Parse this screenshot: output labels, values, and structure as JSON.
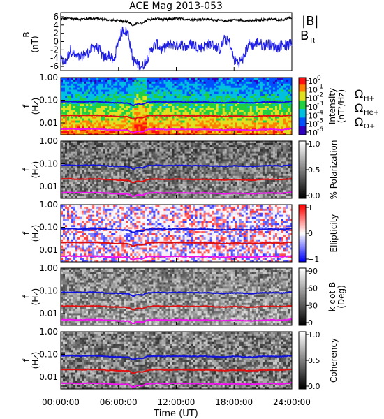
{
  "title": "ACE Mag 2013-053",
  "time_ticks": [
    "00:00:00",
    "06:00:00",
    "12:00:00",
    "18:00:00",
    "24:00:00"
  ],
  "xlabel": "Time (UT)",
  "colors": {
    "B": "#000000",
    "BR": "#1e1ee6",
    "H": "#1212dd",
    "He": "#e01010",
    "O": "#ee10ee"
  },
  "chart_data": [
    {
      "type": "line",
      "panel": "magnetic-field",
      "ylabel": "B",
      "yunit": "(nT)",
      "ylim": [
        -7,
        7
      ],
      "yticks": [
        "6",
        "4",
        "2",
        "0",
        "-2",
        "-4",
        "-6"
      ],
      "xlim_hours": [
        0,
        24
      ],
      "series": [
        {
          "name": "|B|",
          "x_hours": [
            0,
            1,
            2,
            3,
            4,
            5,
            6,
            7,
            7.5,
            8,
            8.5,
            9,
            10,
            11,
            12,
            13,
            14,
            15,
            16,
            17,
            18,
            19,
            20,
            21,
            22,
            23,
            24
          ],
          "values": [
            5.5,
            5.6,
            5.4,
            5.6,
            5.5,
            5.2,
            5.0,
            4.9,
            3.8,
            4.5,
            4.3,
            5.3,
            5.5,
            5.3,
            5.5,
            5.4,
            5.3,
            5.4,
            5.2,
            5.0,
            5.3,
            5.1,
            5.0,
            5.3,
            5.4,
            5.2,
            5.8
          ]
        },
        {
          "name": "B",
          "subscript": "R",
          "x_hours": [
            0,
            0.5,
            1,
            1.5,
            2,
            2.5,
            3,
            3.5,
            4,
            4.5,
            5,
            5.5,
            6,
            6.5,
            7,
            7.5,
            8,
            8.5,
            9,
            9.5,
            10,
            10.5,
            11,
            11.5,
            12,
            12.5,
            13,
            13.5,
            14,
            14.5,
            15,
            15.5,
            16,
            16.5,
            17,
            17.5,
            18,
            18.5,
            19,
            19.5,
            20,
            20.5,
            21,
            21.5,
            22,
            22.5,
            23,
            23.5,
            24
          ],
          "values": [
            -4.5,
            -5.0,
            -2.0,
            -3.5,
            -4.0,
            -3.0,
            -2.5,
            -1.0,
            -2.0,
            -4.0,
            -3.0,
            -5.0,
            0.5,
            3.0,
            2.0,
            -4.5,
            -5.5,
            -6.0,
            -4.0,
            -1.5,
            -0.5,
            -2.0,
            -1.0,
            -0.5,
            -1.0,
            -0.5,
            -1.5,
            -0.5,
            -1.0,
            -1.5,
            -1.0,
            -0.5,
            -1.0,
            -2.0,
            0.5,
            0.0,
            -4.5,
            -5.0,
            -4.0,
            -0.5,
            -1.0,
            0.0,
            -1.0,
            -0.5,
            -1.0,
            -1.5,
            -0.5,
            -1.0,
            -0.5
          ]
        }
      ]
    },
    {
      "type": "heatmap",
      "panel": "intensity",
      "ylabel": "f",
      "yunit": "(Hz)",
      "yscale": "log",
      "ylim": [
        0.003,
        1.0
      ],
      "yticks": [
        "1.00",
        "0.10",
        "0.01"
      ],
      "colorbar": {
        "label": "Intensity",
        "unit": "(nT²/Hz)",
        "scale": "log",
        "ticks": [
          {
            "base": "10",
            "exp": "0"
          },
          {
            "base": "10",
            "exp": "-1"
          },
          {
            "base": "10",
            "exp": "-2"
          },
          {
            "base": "10",
            "exp": "-3"
          },
          {
            "base": "10",
            "exp": "-4"
          },
          {
            "base": "10",
            "exp": "-5"
          },
          {
            "base": "10",
            "exp": "-6"
          }
        ],
        "palette": "rainbow"
      },
      "legend": [
        {
          "symbol": "Ω",
          "subscript": "H+",
          "color": "#1212dd"
        },
        {
          "symbol": "Ω",
          "subscript": "He+",
          "color": "#e01010"
        },
        {
          "symbol": "Ω",
          "subscript": "O+",
          "color": "#ee10ee"
        }
      ]
    },
    {
      "type": "heatmap",
      "panel": "polarization",
      "ylabel": "f",
      "yunit": "(Hz)",
      "yscale": "log",
      "ylim": [
        0.003,
        1.0
      ],
      "yticks": [
        "1.00",
        "0.10",
        "0.01"
      ],
      "colorbar": {
        "label": "% Polarization",
        "ticks": [
          "1.0",
          "0.5",
          "0.0"
        ],
        "palette": "gray"
      }
    },
    {
      "type": "heatmap",
      "panel": "ellipticity",
      "ylabel": "f",
      "yunit": "(Hz)",
      "yscale": "log",
      "ylim": [
        0.003,
        1.0
      ],
      "yticks": [
        "1.00",
        "0.10",
        "0.01"
      ],
      "colorbar": {
        "label": "Ellipticity",
        "ticks": [
          "1",
          "0",
          "−1"
        ],
        "palette": "blue-white-red"
      }
    },
    {
      "type": "heatmap",
      "panel": "k-dot-b",
      "ylabel": "f",
      "yunit": "(Hz)",
      "yscale": "log",
      "ylim": [
        0.003,
        1.0
      ],
      "yticks": [
        "1.00",
        "0.10",
        "0.01"
      ],
      "colorbar": {
        "label": "k dot B",
        "unit": "(Deg)",
        "ticks": [
          "90",
          "60",
          "30",
          "0"
        ],
        "palette": "gray"
      }
    },
    {
      "type": "heatmap",
      "panel": "coherency",
      "ylabel": "f",
      "yunit": "(Hz)",
      "yscale": "log",
      "ylim": [
        0.003,
        1.0
      ],
      "yticks": [
        "1.00",
        "0.10",
        "0.01"
      ],
      "colorbar": {
        "label": "Coherency",
        "ticks": [
          "1.0",
          "0.5",
          "0.0"
        ],
        "palette": "gray"
      }
    }
  ],
  "gyrofrequency_lines": {
    "x_hours": [
      0,
      1,
      2,
      3,
      4,
      5,
      6,
      7,
      7.5,
      8,
      8.5,
      9,
      10,
      11,
      12,
      13,
      14,
      15,
      16,
      17,
      18,
      19,
      20,
      21,
      22,
      23,
      24
    ],
    "H_plus_hz": [
      0.085,
      0.087,
      0.083,
      0.087,
      0.085,
      0.08,
      0.077,
      0.075,
      0.058,
      0.069,
      0.066,
      0.082,
      0.085,
      0.082,
      0.085,
      0.083,
      0.082,
      0.083,
      0.08,
      0.077,
      0.082,
      0.078,
      0.077,
      0.082,
      0.083,
      0.08,
      0.089
    ],
    "He_plus_hz": [
      0.0213,
      0.0217,
      0.0208,
      0.0217,
      0.0213,
      0.02,
      0.0192,
      0.0188,
      0.0146,
      0.0173,
      0.0166,
      0.0204,
      0.0213,
      0.0204,
      0.0213,
      0.0208,
      0.0204,
      0.0208,
      0.02,
      0.0192,
      0.0204,
      0.0196,
      0.0192,
      0.0204,
      0.0208,
      0.02,
      0.0223
    ],
    "O_plus_hz": [
      0.0053,
      0.0054,
      0.0052,
      0.0054,
      0.0053,
      0.005,
      0.0048,
      0.0047,
      0.0036,
      0.0043,
      0.0041,
      0.0051,
      0.0053,
      0.0051,
      0.0053,
      0.0052,
      0.0051,
      0.0052,
      0.005,
      0.0048,
      0.0051,
      0.0049,
      0.0048,
      0.0051,
      0.0052,
      0.005,
      0.0056
    ]
  }
}
